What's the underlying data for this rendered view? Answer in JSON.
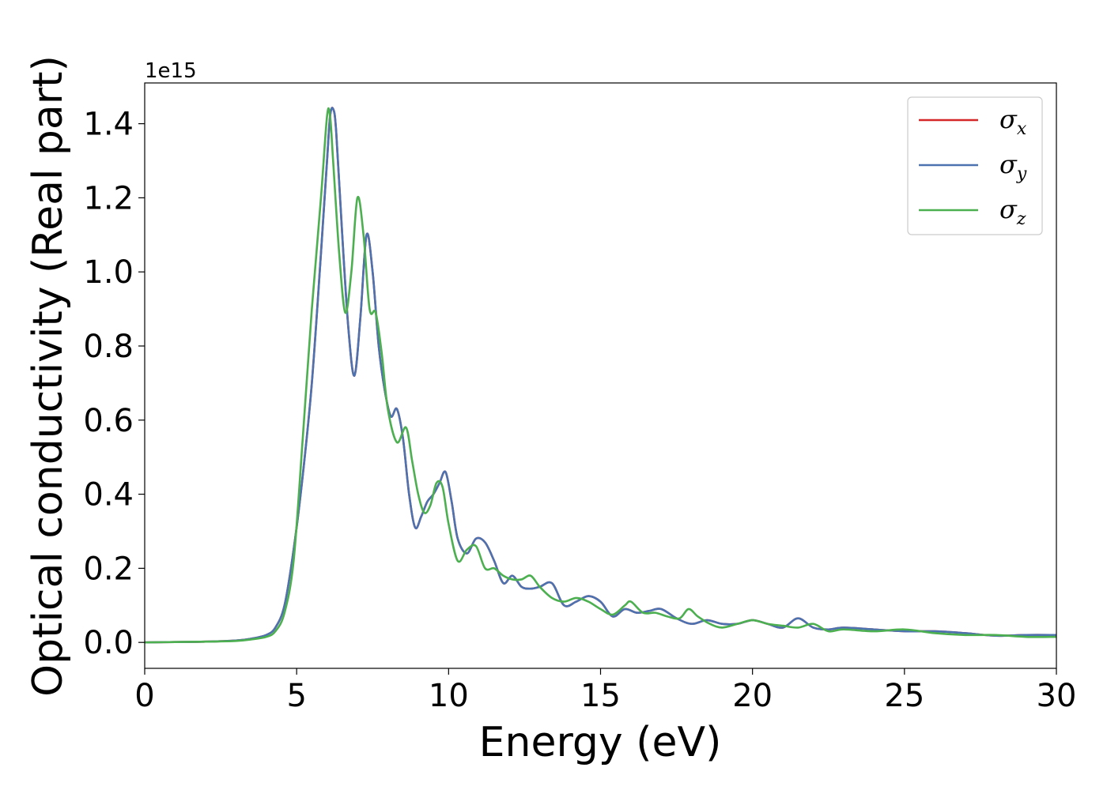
{
  "chart_data": {
    "type": "line",
    "title": "",
    "xlabel": "Energy (eV)",
    "ylabel": "Optical conductivity (Real part)",
    "y_offset_text": "1e15",
    "y_scale": 1000000000000000.0,
    "xlim": [
      0,
      30
    ],
    "ylim": [
      -0.07,
      1.51
    ],
    "x_ticks": [
      0,
      5,
      10,
      15,
      20,
      25,
      30
    ],
    "y_ticks": [
      0.0,
      0.2,
      0.4,
      0.6,
      0.8,
      1.0,
      1.2,
      1.4
    ],
    "x_tick_labels": [
      "0",
      "5",
      "10",
      "15",
      "20",
      "25",
      "30"
    ],
    "y_tick_labels": [
      "0.0",
      "0.2",
      "0.4",
      "0.6",
      "0.8",
      "1.0",
      "1.2",
      "1.4"
    ],
    "grid": false,
    "legend_position": "top-right",
    "series": [
      {
        "name": "σx",
        "symbol": "σ",
        "subscript": "x",
        "color": "#d62728",
        "x": [
          0,
          1,
          2,
          3,
          3.5,
          4,
          4.3,
          4.6,
          4.9,
          5.2,
          5.5,
          5.8,
          6.0,
          6.1,
          6.2,
          6.3,
          6.5,
          6.7,
          6.9,
          7.1,
          7.3,
          7.5,
          7.7,
          7.9,
          8.1,
          8.3,
          8.5,
          8.7,
          8.9,
          9.1,
          9.3,
          9.5,
          9.7,
          9.9,
          10.1,
          10.3,
          10.6,
          10.9,
          11.2,
          11.5,
          11.8,
          12.1,
          12.4,
          12.7,
          13.0,
          13.4,
          13.8,
          14.2,
          14.6,
          15.0,
          15.4,
          15.8,
          16.2,
          16.6,
          17.0,
          17.5,
          18.0,
          18.5,
          19.0,
          19.5,
          20.0,
          20.5,
          21.0,
          21.5,
          22.0,
          22.5,
          23.0,
          24.0,
          25.0,
          26.0,
          27.0,
          28.0,
          29.0,
          30.0
        ],
        "y": [
          0.0,
          0.001,
          0.002,
          0.005,
          0.01,
          0.02,
          0.04,
          0.1,
          0.25,
          0.45,
          0.7,
          1.05,
          1.3,
          1.42,
          1.44,
          1.38,
          1.1,
          0.85,
          0.72,
          0.88,
          1.1,
          1.0,
          0.8,
          0.68,
          0.61,
          0.63,
          0.55,
          0.4,
          0.31,
          0.34,
          0.38,
          0.4,
          0.43,
          0.46,
          0.38,
          0.28,
          0.24,
          0.28,
          0.27,
          0.22,
          0.16,
          0.18,
          0.15,
          0.145,
          0.15,
          0.16,
          0.1,
          0.11,
          0.125,
          0.11,
          0.07,
          0.09,
          0.08,
          0.085,
          0.09,
          0.065,
          0.05,
          0.06,
          0.05,
          0.05,
          0.06,
          0.05,
          0.04,
          0.065,
          0.04,
          0.035,
          0.04,
          0.035,
          0.03,
          0.03,
          0.025,
          0.018,
          0.02,
          0.02
        ]
      },
      {
        "name": "σy",
        "symbol": "σ",
        "subscript": "y",
        "color": "#4c72b0",
        "x": [
          0,
          1,
          2,
          3,
          3.5,
          4,
          4.3,
          4.6,
          4.9,
          5.2,
          5.5,
          5.8,
          6.0,
          6.1,
          6.2,
          6.3,
          6.5,
          6.7,
          6.9,
          7.1,
          7.3,
          7.5,
          7.7,
          7.9,
          8.1,
          8.3,
          8.5,
          8.7,
          8.9,
          9.1,
          9.3,
          9.5,
          9.7,
          9.9,
          10.1,
          10.3,
          10.6,
          10.9,
          11.2,
          11.5,
          11.8,
          12.1,
          12.4,
          12.7,
          13.0,
          13.4,
          13.8,
          14.2,
          14.6,
          15.0,
          15.4,
          15.8,
          16.2,
          16.6,
          17.0,
          17.5,
          18.0,
          18.5,
          19.0,
          19.5,
          20.0,
          20.5,
          21.0,
          21.5,
          22.0,
          22.5,
          23.0,
          24.0,
          25.0,
          26.0,
          27.0,
          28.0,
          29.0,
          30.0
        ],
        "y": [
          0.0,
          0.001,
          0.002,
          0.005,
          0.01,
          0.02,
          0.04,
          0.1,
          0.25,
          0.45,
          0.7,
          1.05,
          1.3,
          1.42,
          1.44,
          1.38,
          1.1,
          0.85,
          0.72,
          0.88,
          1.1,
          1.0,
          0.8,
          0.68,
          0.61,
          0.63,
          0.55,
          0.4,
          0.31,
          0.34,
          0.38,
          0.4,
          0.43,
          0.46,
          0.38,
          0.28,
          0.24,
          0.28,
          0.27,
          0.22,
          0.16,
          0.18,
          0.15,
          0.145,
          0.15,
          0.16,
          0.1,
          0.11,
          0.125,
          0.11,
          0.07,
          0.09,
          0.08,
          0.085,
          0.09,
          0.065,
          0.05,
          0.06,
          0.05,
          0.05,
          0.06,
          0.05,
          0.04,
          0.065,
          0.04,
          0.035,
          0.04,
          0.035,
          0.03,
          0.03,
          0.025,
          0.018,
          0.02,
          0.02
        ]
      },
      {
        "name": "σz",
        "symbol": "σ",
        "subscript": "z",
        "color": "#4caf50",
        "x": [
          0,
          1,
          2,
          3,
          3.5,
          4,
          4.3,
          4.6,
          4.9,
          5.2,
          5.5,
          5.8,
          6.0,
          6.1,
          6.2,
          6.4,
          6.6,
          6.8,
          7.0,
          7.2,
          7.4,
          7.6,
          7.8,
          8.0,
          8.3,
          8.6,
          8.8,
          9.0,
          9.2,
          9.4,
          9.6,
          9.8,
          10.0,
          10.3,
          10.6,
          10.9,
          11.2,
          11.5,
          11.8,
          12.1,
          12.4,
          12.7,
          13.0,
          13.4,
          13.8,
          14.2,
          14.6,
          15.0,
          15.4,
          15.8,
          16.0,
          16.4,
          16.8,
          17.2,
          17.6,
          17.9,
          18.2,
          18.6,
          19.0,
          19.5,
          20.0,
          20.5,
          21.0,
          21.5,
          22.0,
          22.5,
          23.0,
          24.0,
          25.0,
          26.0,
          27.0,
          28.0,
          29.0,
          30.0
        ],
        "y": [
          0.0,
          0.001,
          0.002,
          0.004,
          0.008,
          0.015,
          0.03,
          0.08,
          0.22,
          0.55,
          0.9,
          1.2,
          1.42,
          1.42,
          1.3,
          1.05,
          0.89,
          1.0,
          1.2,
          1.1,
          0.9,
          0.89,
          0.78,
          0.63,
          0.54,
          0.58,
          0.49,
          0.4,
          0.35,
          0.37,
          0.43,
          0.42,
          0.32,
          0.22,
          0.25,
          0.26,
          0.2,
          0.2,
          0.18,
          0.17,
          0.17,
          0.18,
          0.15,
          0.12,
          0.11,
          0.12,
          0.11,
          0.09,
          0.075,
          0.1,
          0.11,
          0.08,
          0.08,
          0.07,
          0.065,
          0.09,
          0.07,
          0.05,
          0.04,
          0.05,
          0.06,
          0.05,
          0.045,
          0.04,
          0.05,
          0.03,
          0.035,
          0.03,
          0.035,
          0.025,
          0.02,
          0.02,
          0.015,
          0.015
        ]
      }
    ]
  }
}
